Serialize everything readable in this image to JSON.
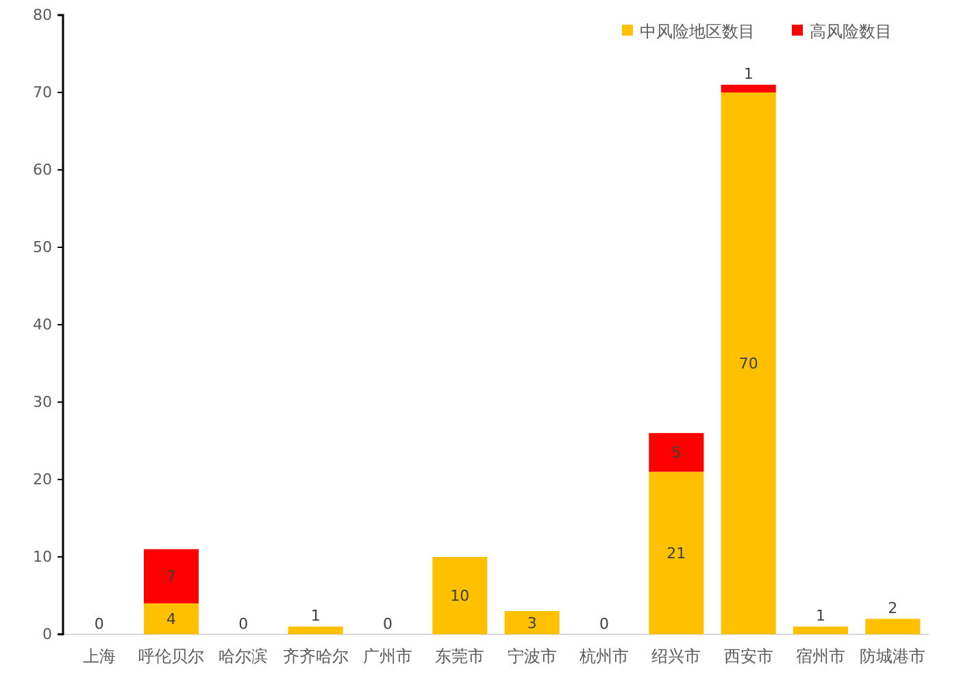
{
  "chart_data": {
    "type": "bar",
    "stacked": true,
    "categories": [
      "上海",
      "呼伦贝尔",
      "哈尔滨",
      "齐齐哈尔",
      "广州市",
      "东莞市",
      "宁波市",
      "杭州市",
      "绍兴市",
      "西安市",
      "宿州市",
      "防城港市"
    ],
    "series": [
      {
        "name": "中风险地区数目",
        "color": "#ffc000",
        "values": [
          0,
          4,
          0,
          1,
          0,
          10,
          3,
          0,
          21,
          70,
          1,
          2
        ],
        "value_labels": [
          "0",
          "4",
          "0",
          "1",
          "0",
          "10",
          "3",
          "0",
          "21",
          "70",
          "1",
          "2"
        ]
      },
      {
        "name": "高风险数目",
        "color": "#ff0000",
        "values": [
          0,
          7,
          0,
          0,
          0,
          0,
          0,
          0,
          5,
          1,
          0,
          0
        ],
        "value_labels": [
          null,
          "7",
          null,
          null,
          null,
          null,
          null,
          null,
          "5",
          "1",
          null,
          null
        ]
      }
    ],
    "ylim": [
      0,
      80
    ],
    "yticks": [
      0,
      10,
      20,
      30,
      40,
      50,
      60,
      70,
      80
    ],
    "grid": false,
    "legend": "top right"
  }
}
